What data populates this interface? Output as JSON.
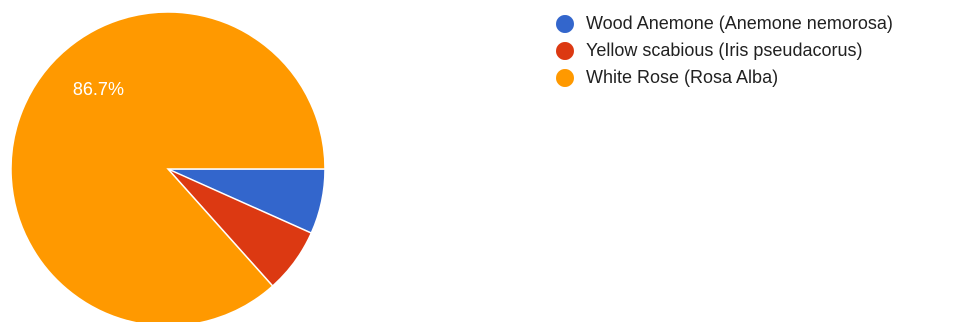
{
  "chart_data": {
    "type": "pie",
    "title": "",
    "legend_position": "top-right",
    "slices": [
      {
        "name": "Wood Anemone (Anemone nemorosa)",
        "value": 6.7,
        "label": "",
        "color": "#3366cc"
      },
      {
        "name": "Yellow scabious (Iris pseudacorus)",
        "value": 6.7,
        "label": "",
        "color": "#dc3912"
      },
      {
        "name": "White Rose (Rosa Alba)",
        "value": 86.7,
        "label": "86.7%",
        "color": "#ff9900"
      }
    ]
  }
}
